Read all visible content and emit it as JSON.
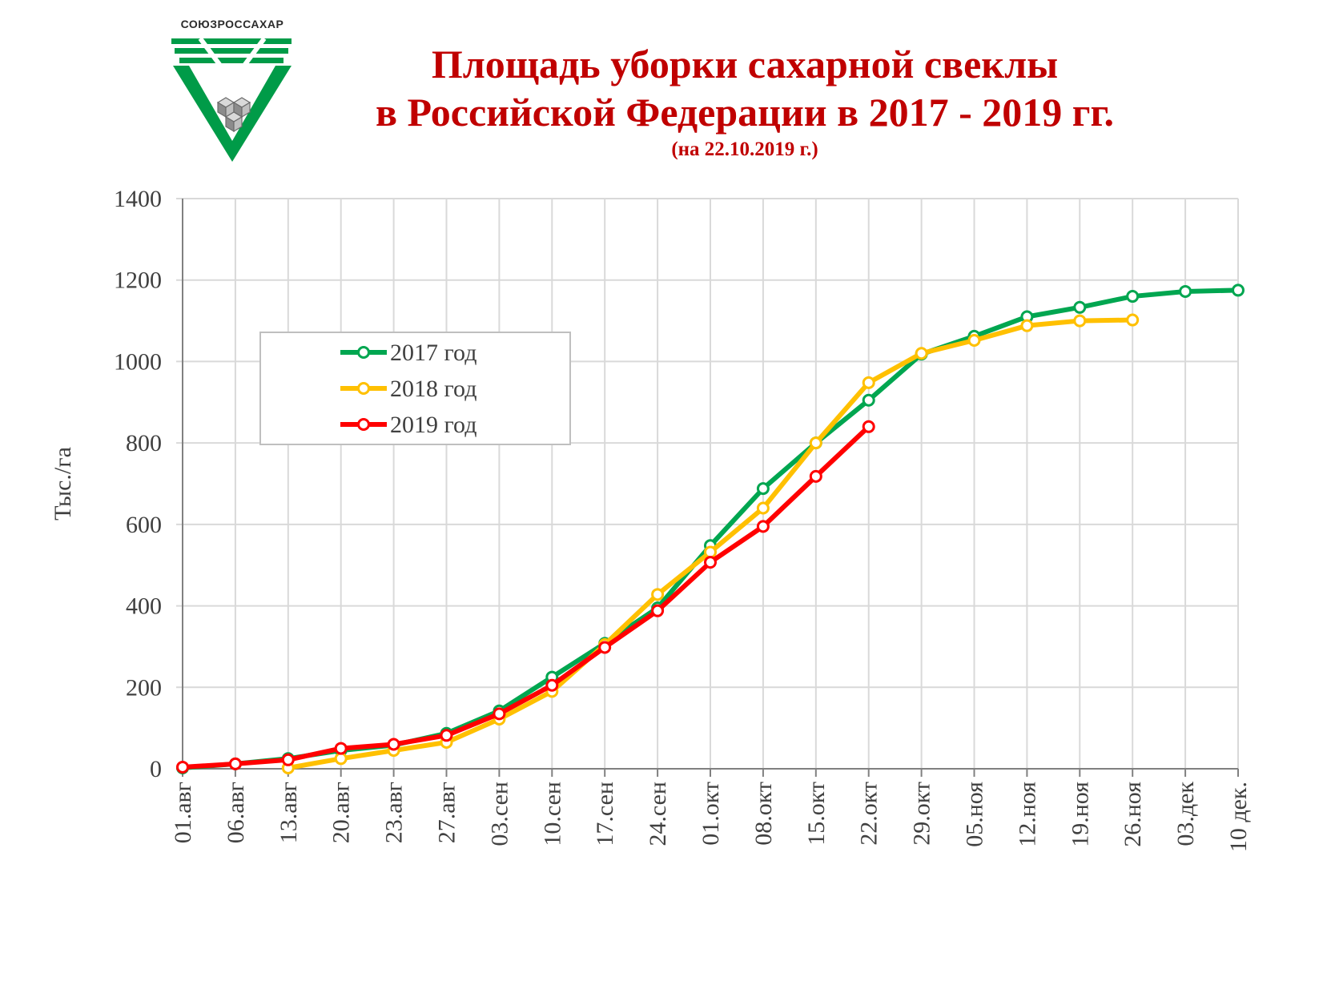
{
  "logo": {
    "text": "СОЮЗРОССАХАР"
  },
  "title": {
    "line1": "Площадь уборки сахарной свеклы",
    "line2": "в Российской Федерации в 2017 - 2019 гг.",
    "subtitle": "(на 22.10.2019 г.)"
  },
  "chart_data": {
    "type": "line",
    "ylabel": "Тыс./га",
    "ylim": [
      0,
      1400
    ],
    "yticks": [
      0,
      200,
      400,
      600,
      800,
      1000,
      1200,
      1400
    ],
    "grid": true,
    "legend_position": "upper-left",
    "categories": [
      "01.авг",
      "06.авг",
      "13.авг",
      "20.авг",
      "23.авг",
      "27.авг",
      "03.сен",
      "10.сен",
      "17.сен",
      "24.сен",
      "01.окт",
      "08.окт",
      "15.окт",
      "22.окт",
      "29.окт",
      "05.ноя",
      "12.ноя",
      "19.ноя",
      "26.ноя",
      "03.дек",
      "10 дек."
    ],
    "series": [
      {
        "name": "2017 год",
        "color": "#00a650",
        "values": [
          2,
          12,
          25,
          45,
          58,
          87,
          142,
          225,
          308,
          395,
          548,
          688,
          800,
          905,
          1018,
          1062,
          1110,
          1133,
          1160,
          1172,
          1175
        ]
      },
      {
        "name": "2018 год",
        "color": "#ffc000",
        "values": [
          null,
          null,
          2,
          25,
          45,
          65,
          122,
          190,
          305,
          428,
          532,
          640,
          800,
          948,
          1020,
          1052,
          1088,
          1100,
          1102,
          null,
          null
        ]
      },
      {
        "name": "2019 год",
        "color": "#ff0000",
        "values": [
          4,
          12,
          22,
          50,
          60,
          82,
          135,
          205,
          298,
          388,
          507,
          595,
          718,
          840,
          null,
          null,
          null,
          null,
          null,
          null,
          null
        ]
      }
    ]
  }
}
